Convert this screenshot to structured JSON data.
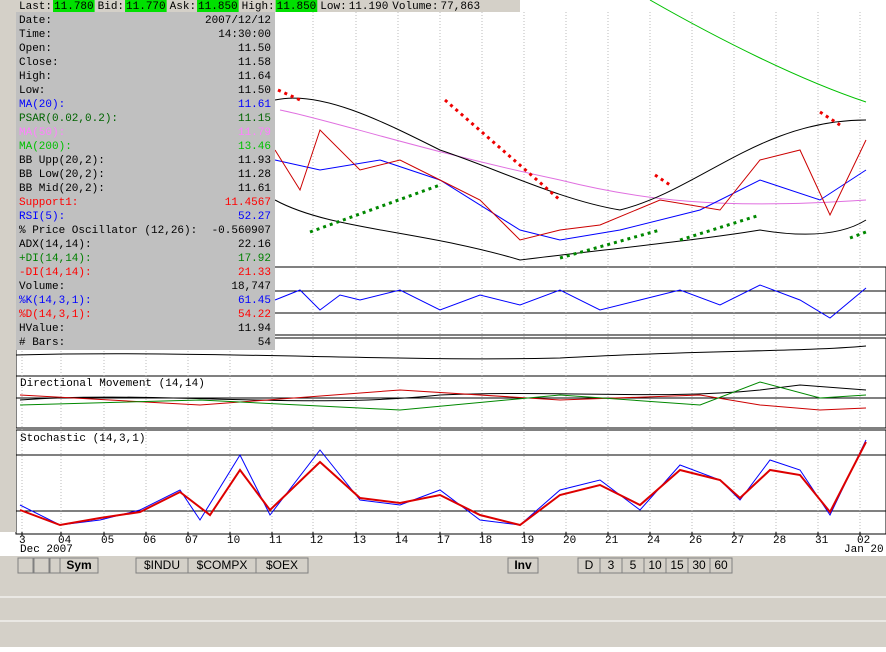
{
  "quote_bar": [
    {
      "label": "Last:",
      "value": "11.780"
    },
    {
      "label": "Bid:",
      "value": "11.770"
    },
    {
      "label": "Ask:",
      "value": "11.850"
    },
    {
      "label": "High:",
      "value": "11.850"
    },
    {
      "label": "Low:",
      "value": "11.190"
    },
    {
      "label": "Volume:",
      "value": "77,863"
    }
  ],
  "data_window": [
    {
      "label": "Date:",
      "value": "2007/12/12",
      "color": "#000"
    },
    {
      "label": "Time:",
      "value": "14:30:00",
      "color": "#000"
    },
    {
      "label": "Open:",
      "value": "11.50",
      "color": "#000"
    },
    {
      "label": "Close:",
      "value": "11.58",
      "color": "#000"
    },
    {
      "label": "High:",
      "value": "11.64",
      "color": "#000"
    },
    {
      "label": "Low:",
      "value": "11.50",
      "color": "#000"
    },
    {
      "label": "MA(20):",
      "value": "11.61",
      "color": "#0000ff"
    },
    {
      "label": "PSAR(0.02,0.2):",
      "value": "11.15",
      "color": "#006400"
    },
    {
      "label": "MA(50):",
      "value": "11.79",
      "color": "#ff80ff"
    },
    {
      "label": "MA(200):",
      "value": "13.46",
      "color": "#00c000"
    },
    {
      "label": "BB Upp(20,2):",
      "value": "11.93",
      "color": "#000"
    },
    {
      "label": "BB Low(20,2):",
      "value": "11.28",
      "color": "#000"
    },
    {
      "label": "BB Mid(20,2):",
      "value": "11.61",
      "color": "#000"
    },
    {
      "label": "Support1:",
      "value": "11.4567",
      "color": "#ff0000"
    },
    {
      "label": "RSI(5):",
      "value": "52.27",
      "color": "#0000ff"
    },
    {
      "label": "% Price Oscillator (12,26):",
      "value": "-0.560907",
      "color": "#000"
    },
    {
      "label": "ADX(14,14):",
      "value": "22.16",
      "color": "#000"
    },
    {
      "label": "+DI(14,14):",
      "value": "17.92",
      "color": "#008000"
    },
    {
      "label": "-DI(14,14):",
      "value": "21.33",
      "color": "#ff0000"
    },
    {
      "label": "Volume:",
      "value": "18,747",
      "color": "#000"
    },
    {
      "label": "%K(14,3,1):",
      "value": "61.45",
      "color": "#0000ff"
    },
    {
      "label": "%D(14,3,1):",
      "value": "54.22",
      "color": "#ff0000"
    },
    {
      "label": "HValue:",
      "value": "11.94",
      "color": "#000"
    },
    {
      "label": "# Bars:",
      "value": "54",
      "color": "#000"
    }
  ],
  "panels": {
    "directional": "Directional Movement (14,14)",
    "stochastic": "Stochastic (14,3,1)"
  },
  "x_axis": {
    "labels": [
      "3",
      "04",
      "05",
      "06",
      "07",
      "10",
      "11",
      "12",
      "13",
      "14",
      "17",
      "18",
      "19",
      "20",
      "21",
      "24",
      "26",
      "27",
      "28",
      "31",
      "02"
    ],
    "month_left": "Dec 2007",
    "month_right": "Jan 20"
  },
  "tabs": {
    "symbol_button": "Sym",
    "symbols": [
      "$INDU",
      "$COMPX",
      "$OEX"
    ],
    "interval_button": "Inv",
    "intervals": [
      "D",
      "3",
      "5",
      "10",
      "15",
      "30",
      "60"
    ]
  }
}
